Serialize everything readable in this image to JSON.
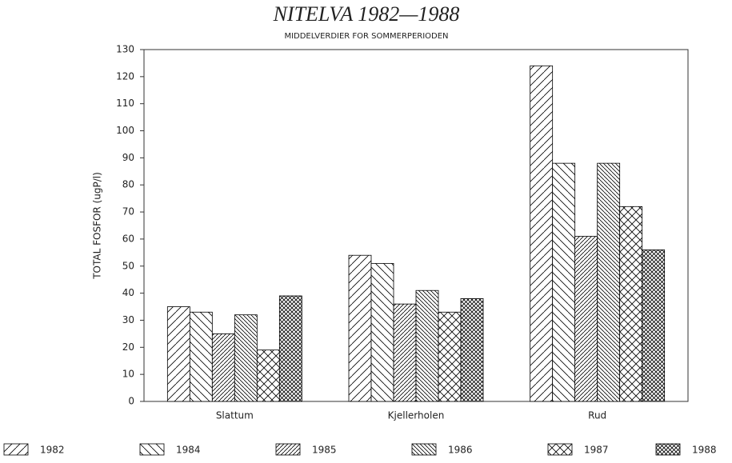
{
  "chart_data": {
    "type": "bar",
    "title": "NITELVA 1982—1988",
    "subtitle": "MIDDELVERDIER FOR SOMMERPERIODEN",
    "y_label": "TOTAL FOSFOR (ugP/l)",
    "categories": [
      "Slattum",
      "Kjellerholen",
      "Rud"
    ],
    "series": [
      {
        "name": "1982",
        "color": "#000000",
        "hatch": "wide-forward",
        "values": [
          35,
          54,
          124
        ]
      },
      {
        "name": "1984",
        "color": "#000000",
        "hatch": "wide-backward",
        "values": [
          33,
          51,
          88
        ]
      },
      {
        "name": "1985",
        "color": "#000000",
        "hatch": "dense-forward",
        "values": [
          25,
          36,
          61
        ]
      },
      {
        "name": "1986",
        "color": "#000000",
        "hatch": "dense-backward",
        "values": [
          32,
          41,
          88
        ]
      },
      {
        "name": "1987",
        "color": "#000000",
        "hatch": "wide-cross",
        "values": [
          19,
          33,
          72
        ]
      },
      {
        "name": "1988",
        "color": "#000000",
        "hatch": "dense-cross",
        "values": [
          39,
          38,
          56
        ]
      }
    ],
    "ylim": [
      0,
      130
    ],
    "yticks": [
      0,
      10,
      20,
      30,
      40,
      50,
      60,
      70,
      80,
      90,
      100,
      110,
      120,
      130
    ],
    "grid": false,
    "legend": "bottom"
  }
}
